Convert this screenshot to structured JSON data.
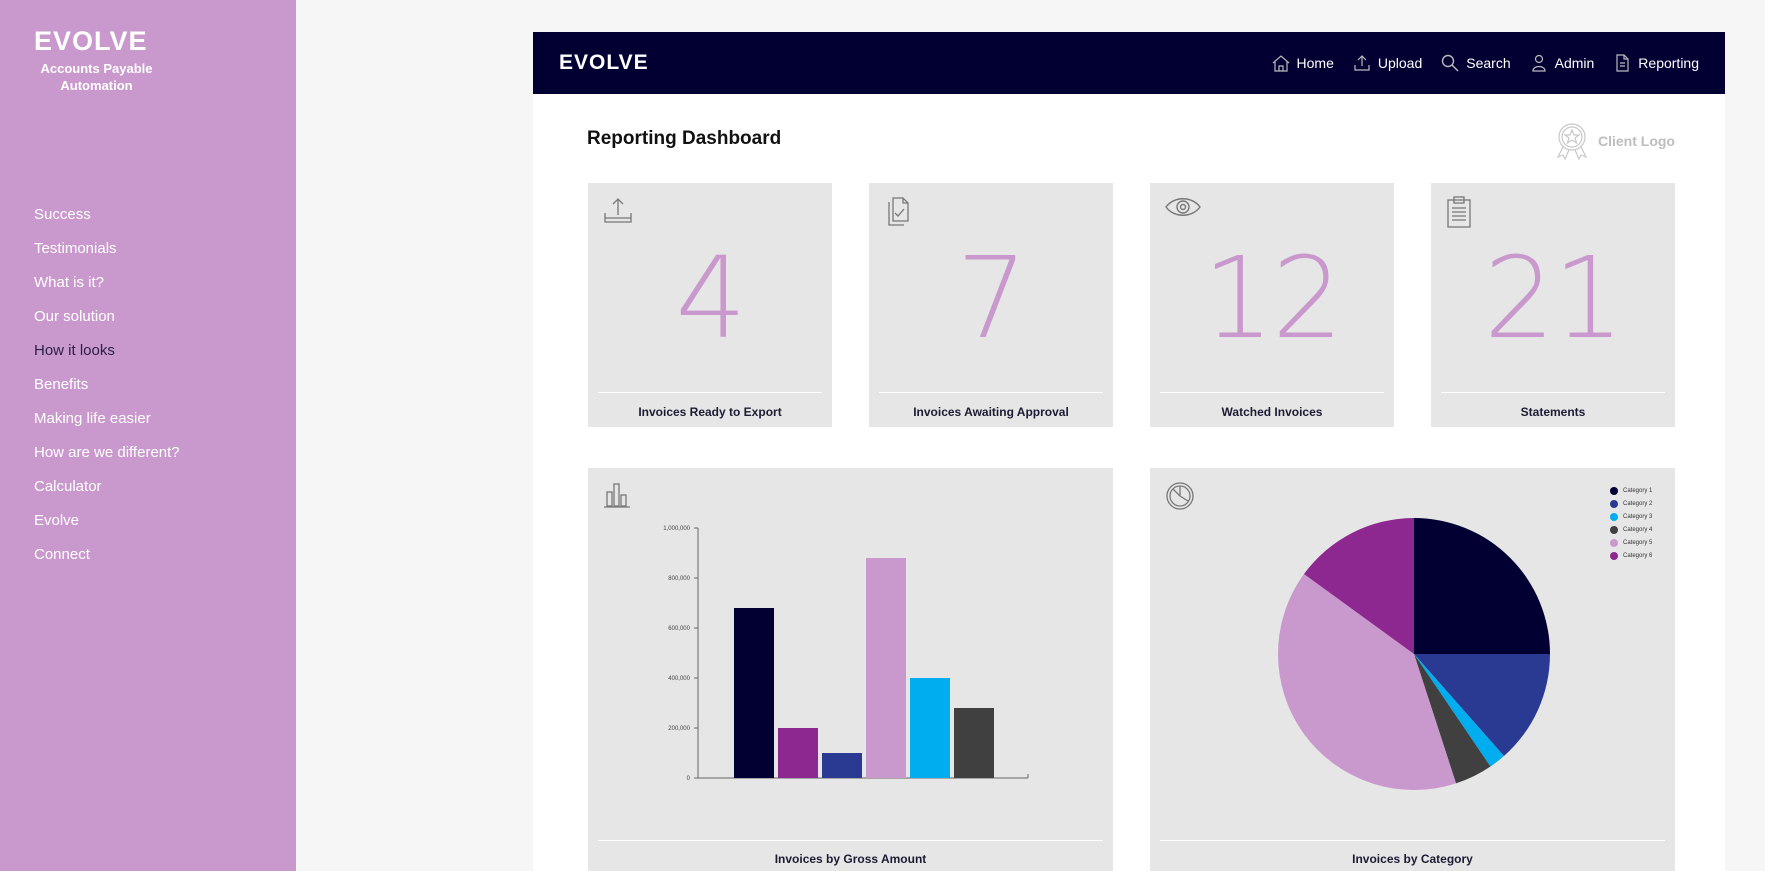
{
  "sidebar": {
    "brand": "EVOLVE",
    "tagline": "Accounts Payable Automation",
    "items": [
      {
        "label": "Success"
      },
      {
        "label": "Testimonials"
      },
      {
        "label": "What is it?"
      },
      {
        "label": "Our solution"
      },
      {
        "label": "How it looks"
      },
      {
        "label": "Benefits"
      },
      {
        "label": "Making life easier"
      },
      {
        "label": "How are we different?"
      },
      {
        "label": "Calculator"
      },
      {
        "label": "Evolve"
      },
      {
        "label": "Connect"
      }
    ]
  },
  "topbar": {
    "logo": "EVOLVE",
    "nav": [
      {
        "label": "Home",
        "icon": "home-icon"
      },
      {
        "label": "Upload",
        "icon": "upload-icon"
      },
      {
        "label": "Search",
        "icon": "search-icon"
      },
      {
        "label": "Admin",
        "icon": "user-icon"
      },
      {
        "label": "Reporting",
        "icon": "document-icon"
      }
    ]
  },
  "dashboard": {
    "title": "Reporting Dashboard",
    "client_logo": "Client Logo",
    "stats": [
      {
        "value": "4",
        "label": "Invoices Ready to Export",
        "icon": "upload-tray-icon"
      },
      {
        "value": "7",
        "label": "Invoices Awaiting Approval",
        "icon": "approval-documents-icon"
      },
      {
        "value": "12",
        "label": "Watched Invoices",
        "icon": "eye-icon"
      },
      {
        "value": "21",
        "label": "Statements",
        "icon": "clipboard-icon"
      }
    ],
    "bar_card_label": "Invoices by Gross Amount",
    "pie_card_label": "Invoices by Category"
  },
  "colors": {
    "accent": "#c999cd",
    "navy": "#020033",
    "card": "#e6e6e6"
  },
  "chart_data": [
    {
      "type": "bar",
      "title": "Invoices by Gross Amount",
      "categories": [
        "",
        "",
        "",
        "",
        "",
        ""
      ],
      "values": [
        680000,
        200000,
        100000,
        880000,
        400000,
        280000
      ],
      "colors": [
        "#020033",
        "#8c2890",
        "#2a3a93",
        "#c999cd",
        "#00aeef",
        "#404040"
      ],
      "yticks": [
        "0",
        "200,000",
        "400,000",
        "600,000",
        "800,000",
        "1,000,000"
      ],
      "ylim": [
        0,
        1000000
      ],
      "grid": false
    },
    {
      "type": "pie",
      "title": "Invoices by Category",
      "legend": "top-right",
      "slices": [
        {
          "name": "Category 1",
          "value": 25,
          "color": "#020033"
        },
        {
          "name": "Category 2",
          "value": 13.5,
          "color": "#2a3a93"
        },
        {
          "name": "Category 3",
          "value": 2,
          "color": "#00aeef"
        },
        {
          "name": "Category 4",
          "value": 4.5,
          "color": "#404040"
        },
        {
          "name": "Category 5",
          "value": 40,
          "color": "#c999cd"
        },
        {
          "name": "Category 6",
          "value": 15,
          "color": "#8c2890"
        }
      ]
    }
  ]
}
